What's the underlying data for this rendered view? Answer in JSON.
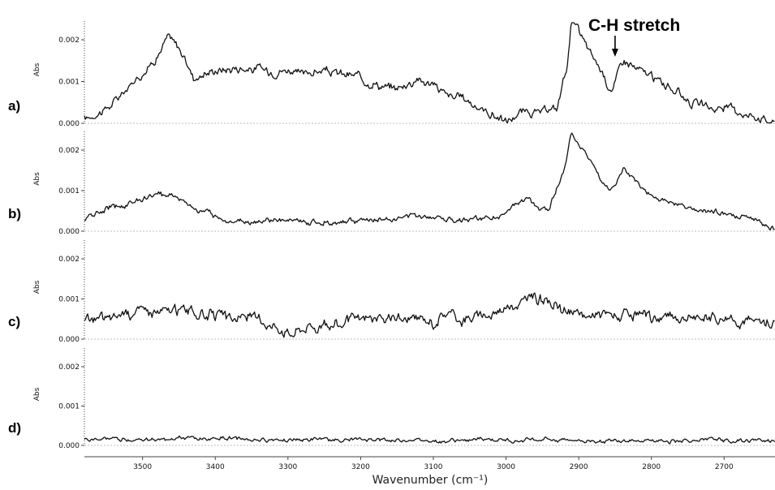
{
  "chart_data": {
    "type": "line",
    "xlabel": "Wavenumber (cm⁻¹)",
    "xlim": [
      3580,
      2630
    ],
    "x_ticks": [
      3500,
      3400,
      3300,
      3200,
      3100,
      3000,
      2900,
      2800,
      2700
    ],
    "ylabel": "Abs",
    "y_ticks": [
      "0.000",
      "0.001",
      "0.002"
    ],
    "ylim": [
      0,
      0.0024
    ],
    "annotation": {
      "text": "C-H stretch",
      "x": 2850,
      "y": 0.00185
    },
    "panels": [
      {
        "label": "a)",
        "x": [
          3580,
          3560,
          3540,
          3520,
          3500,
          3480,
          3465,
          3450,
          3430,
          3400,
          3380,
          3360,
          3340,
          3320,
          3300,
          3280,
          3260,
          3240,
          3220,
          3200,
          3180,
          3160,
          3140,
          3120,
          3100,
          3080,
          3060,
          3040,
          3020,
          3000,
          2980,
          2960,
          2940,
          2930,
          2915,
          2910,
          2900,
          2880,
          2860,
          2853,
          2845,
          2838,
          2820,
          2800,
          2780,
          2760,
          2740,
          2720,
          2700,
          2680,
          2660,
          2640,
          2630
        ],
        "values": [
          0.0001,
          0.00025,
          0.0005,
          0.0008,
          0.0012,
          0.0016,
          0.00205,
          0.0018,
          0.0011,
          0.00125,
          0.0013,
          0.00135,
          0.0013,
          0.00125,
          0.0013,
          0.0012,
          0.00125,
          0.0012,
          0.00115,
          0.0011,
          0.001,
          0.0008,
          0.0009,
          0.0011,
          0.0009,
          0.0007,
          0.0006,
          0.0004,
          0.0002,
          5e-05,
          0.0002,
          0.0002,
          0.00025,
          0.0003,
          0.0015,
          0.0025,
          0.0022,
          0.0016,
          0.001,
          0.0008,
          0.0013,
          0.0016,
          0.0013,
          0.0011,
          0.0009,
          0.0007,
          0.0005,
          0.0004,
          0.00035,
          0.0003,
          0.0002,
          0.0001,
          5e-05
        ],
        "noise": 0.00012
      },
      {
        "label": "b)",
        "x": [
          3580,
          3560,
          3540,
          3520,
          3500,
          3480,
          3460,
          3440,
          3420,
          3400,
          3380,
          3360,
          3340,
          3320,
          3300,
          3280,
          3260,
          3240,
          3220,
          3200,
          3180,
          3160,
          3140,
          3120,
          3100,
          3080,
          3060,
          3040,
          3020,
          3000,
          2990,
          2970,
          2955,
          2940,
          2920,
          2910,
          2900,
          2880,
          2860,
          2852,
          2838,
          2820,
          2800,
          2780,
          2760,
          2740,
          2720,
          2700,
          2680,
          2660,
          2640,
          2630
        ],
        "values": [
          0.0003,
          0.00045,
          0.0006,
          0.0007,
          0.0008,
          0.0009,
          0.00092,
          0.0007,
          0.0005,
          0.00035,
          0.0003,
          0.00028,
          0.00025,
          0.00025,
          0.00025,
          0.00023,
          0.00022,
          0.00023,
          0.00025,
          0.00025,
          0.00028,
          0.0003,
          0.00035,
          0.00038,
          0.00038,
          0.0003,
          0.0003,
          0.0003,
          0.00035,
          0.0004,
          0.0006,
          0.0008,
          0.0005,
          0.0006,
          0.0015,
          0.0025,
          0.0022,
          0.0016,
          0.00105,
          0.001,
          0.0015,
          0.0012,
          0.0009,
          0.0007,
          0.0006,
          0.0005,
          0.00045,
          0.0004,
          0.00035,
          0.0003,
          0.0001,
          5e-05
        ],
        "noise": 8e-05
      },
      {
        "label": "c)",
        "x": [
          3580,
          3560,
          3540,
          3520,
          3500,
          3480,
          3460,
          3440,
          3420,
          3400,
          3380,
          3360,
          3340,
          3320,
          3300,
          3280,
          3260,
          3240,
          3220,
          3200,
          3180,
          3160,
          3140,
          3120,
          3100,
          3080,
          3060,
          3040,
          3020,
          3000,
          2980,
          2960,
          2940,
          2920,
          2900,
          2880,
          2860,
          2840,
          2820,
          2800,
          2780,
          2760,
          2740,
          2720,
          2700,
          2680,
          2660,
          2640,
          2630
        ],
        "values": [
          0.00045,
          0.0005,
          0.0006,
          0.0007,
          0.00075,
          0.0007,
          0.0007,
          0.00075,
          0.0006,
          0.00065,
          0.0005,
          0.0006,
          0.00045,
          0.0004,
          0.0002,
          0.00035,
          0.0004,
          0.0003,
          0.00045,
          0.0005,
          0.0005,
          0.0005,
          0.00045,
          0.0005,
          0.00035,
          0.0006,
          0.0005,
          0.00055,
          0.0006,
          0.0008,
          0.0009,
          0.00105,
          0.00095,
          0.0007,
          0.0006,
          0.0006,
          0.00065,
          0.0006,
          0.00055,
          0.0005,
          0.00055,
          0.0005,
          0.00048,
          0.0005,
          0.0005,
          0.00045,
          0.00045,
          0.0004,
          0.0004
        ],
        "noise": 0.00016
      },
      {
        "label": "d)",
        "x": [
          3580,
          3500,
          3400,
          3300,
          3200,
          3100,
          3000,
          2900,
          2800,
          2700,
          2630
        ],
        "values": [
          0.00015,
          0.00015,
          0.00018,
          0.00015,
          0.00014,
          0.00014,
          0.00013,
          0.00013,
          0.00013,
          0.00012,
          0.00013
        ],
        "noise": 6e-05
      }
    ]
  }
}
